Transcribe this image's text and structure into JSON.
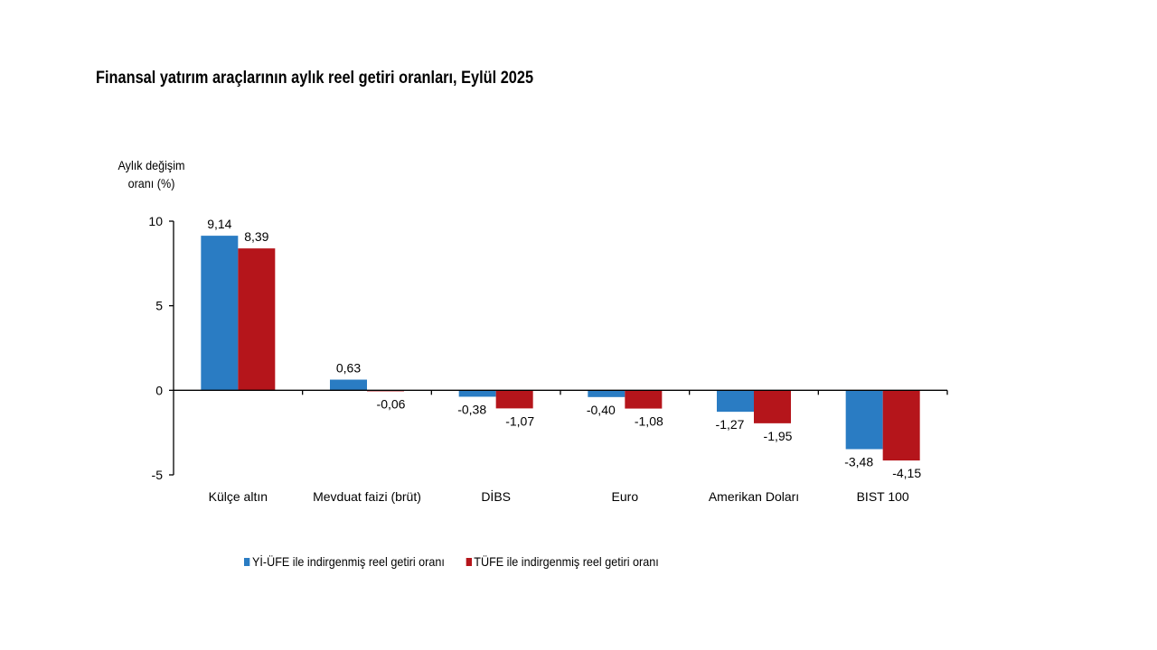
{
  "chart_data": {
    "type": "bar",
    "title": "Finansal yatırım araçlarının aylık reel getiri oranları, Eylül 2025",
    "xlabel": "",
    "ylabel": "Aylık değişim oranı (%)",
    "ylabel_lines": [
      "Aylık değişim",
      "oranı (%)"
    ],
    "ylim": [
      -5,
      10
    ],
    "yticks": [
      10,
      5,
      0,
      -5
    ],
    "ytick_labels": [
      "10",
      "5",
      "0",
      "-5"
    ],
    "grid": false,
    "legend_position": "bottom",
    "categories": [
      "Külçe altın",
      "Mevduat faizi (brüt)",
      "DİBS",
      "Euro",
      "Amerikan Doları",
      "BIST 100"
    ],
    "series": [
      {
        "name": "Yİ-ÜFE ile indirgenmiş reel getiri oranı",
        "color": "#2a7cc3",
        "values": [
          9.14,
          0.63,
          -0.38,
          -0.4,
          -1.27,
          -3.48
        ],
        "labels": [
          "9,14",
          "0,63",
          "-0,38",
          "-0,40",
          "-1,27",
          "-3,48"
        ]
      },
      {
        "name": "TÜFE ile indirgenmiş reel getiri oranı",
        "color": "#b5151b",
        "values": [
          8.39,
          -0.06,
          -1.07,
          -1.08,
          -1.95,
          -4.15
        ],
        "labels": [
          "8,39",
          "-0,06",
          "-1,07",
          "-1,08",
          "-1,95",
          "-4,15"
        ]
      }
    ]
  }
}
